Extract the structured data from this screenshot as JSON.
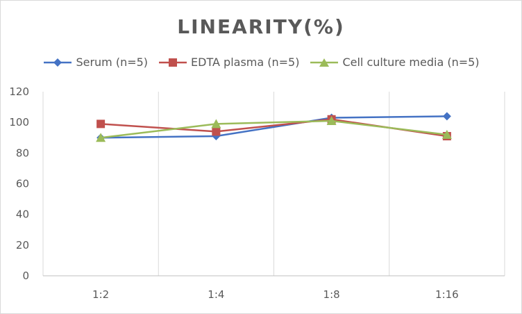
{
  "chart_data": {
    "type": "line",
    "title": "LINEARITY(%)",
    "xlabel": "",
    "ylabel": "",
    "categories": [
      "1:2",
      "1:4",
      "1:8",
      "1:16"
    ],
    "ylim": [
      0,
      120
    ],
    "yticks": [
      0,
      20,
      40,
      60,
      80,
      100,
      120
    ],
    "grid": "vertical",
    "legend_position": "top",
    "series": [
      {
        "name": "Serum (n=5)",
        "values": [
          90,
          91,
          103,
          104
        ],
        "color": "#4472c4",
        "marker": "diamond"
      },
      {
        "name": "EDTA plasma (n=5)",
        "values": [
          99,
          94,
          102,
          91
        ],
        "color": "#c0504d",
        "marker": "square"
      },
      {
        "name": "Cell culture media (n=5)",
        "values": [
          90,
          99,
          101,
          92
        ],
        "color": "#9bbb59",
        "marker": "triangle"
      }
    ]
  }
}
